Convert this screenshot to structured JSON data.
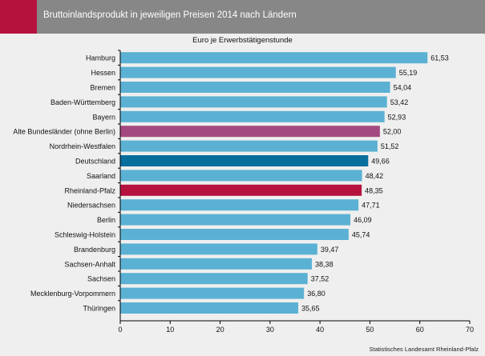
{
  "header": {
    "title": "Bruttoinlandsprodukt in jeweiligen Preisen 2014 nach Ländern"
  },
  "source": "Statistisches Landesamt Rheinland-Pfalz",
  "colors": {
    "default_bar": "#5bb1d3",
    "alte_bundeslaender": "#a4497f",
    "deutschland": "#086e9c",
    "rheinland_pfalz": "#b5123e",
    "header_bg": "#878787",
    "header_accent": "#b5123e"
  },
  "chart_data": {
    "type": "bar",
    "orientation": "horizontal",
    "title": "Bruttoinlandsprodukt in jeweiligen Preisen 2014 nach Ländern",
    "subtitle": "Euro je Erwerbstätigenstunde",
    "categories": [
      "Hamburg",
      "Hessen",
      "Bremen",
      "Baden-Württemberg",
      "Bayern",
      "Alte Bundesländer (ohne Berlin)",
      "Nordrhein-Westfalen",
      "Deutschland",
      "Saarland",
      "Rheinland-Pfalz",
      "Niedersachsen",
      "Berlin",
      "Schleswig-Holstein",
      "Brandenburg",
      "Sachsen-Anhalt",
      "Sachsen",
      "Mecklenburg-Vorpommern",
      "Thüringen"
    ],
    "values": [
      61.53,
      55.19,
      54.04,
      53.42,
      52.93,
      52.0,
      51.52,
      49.66,
      48.42,
      48.35,
      47.71,
      46.09,
      45.74,
      39.47,
      38.38,
      37.52,
      36.8,
      35.65
    ],
    "value_labels": [
      "61,53",
      "55,19",
      "54,04",
      "53,42",
      "52,93",
      "52,00",
      "51,52",
      "49,66",
      "48,42",
      "48,35",
      "47,71",
      "46,09",
      "45,74",
      "39,47",
      "38,38",
      "37,52",
      "36,80",
      "35,65"
    ],
    "highlight": {
      "Alte Bundesländer (ohne Berlin)": "alte_bundeslaender",
      "Deutschland": "deutschland",
      "Rheinland-Pfalz": "rheinland_pfalz"
    },
    "xlim": [
      0,
      70
    ],
    "xticks": [
      "0",
      "10",
      "20",
      "30",
      "40",
      "50",
      "60",
      "70"
    ],
    "xtick_values": [
      0,
      10,
      20,
      30,
      40,
      50,
      60,
      70
    ],
    "xlabel": "",
    "ylabel": "",
    "grid": false,
    "legend": "none"
  }
}
